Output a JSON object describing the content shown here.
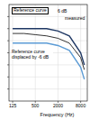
{
  "chart_data": {
    "type": "line",
    "x": [
      125,
      250,
      500,
      1000,
      2000,
      4000,
      8000,
      10000
    ],
    "xlabel": "Frequency (Hz)",
    "series": [
      {
        "name": "Reference curve",
        "color": "#1f3864",
        "values": [
          0,
          0,
          0,
          0,
          -1,
          -3,
          -10,
          -15
        ]
      },
      {
        "name": "Reference curve displaced by -6 dB",
        "color": "#5b9bd5",
        "values": [
          -6,
          -6,
          -6,
          -6,
          -7,
          -9,
          -16,
          -21
        ]
      },
      {
        "name": "measured",
        "color": "#000000",
        "values": [
          -2,
          -2,
          -2.5,
          -3,
          -4,
          -6,
          -12,
          -17
        ]
      }
    ],
    "annotations": [
      "6 dB"
    ],
    "xlim": [
      100,
      12000
    ],
    "xticks": [
      125,
      500,
      2000,
      8000
    ],
    "ylim": [
      -30,
      10
    ],
    "yticks": [
      -25,
      -20,
      -15,
      -10,
      -5,
      0,
      5
    ],
    "log": "x",
    "grid": true,
    "tick_labels": "x"
  }
}
